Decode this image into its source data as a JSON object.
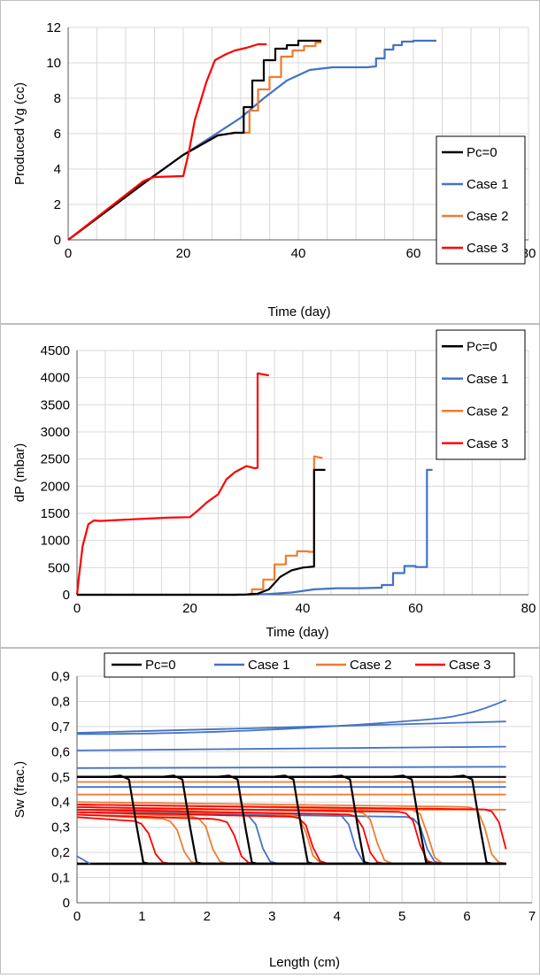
{
  "chart_data": [
    {
      "type": "line",
      "xlabel": "Time (day)",
      "ylabel": "Produced Vg (cc)",
      "xlim": [
        0,
        80
      ],
      "ylim": [
        0,
        12
      ],
      "xticks": [
        "0",
        "20",
        "40",
        "60",
        "80"
      ],
      "yticks": [
        "0",
        "2",
        "4",
        "6",
        "8",
        "10",
        "12"
      ],
      "grid": true,
      "legend_position": "right",
      "series": [
        {
          "name": "Pc=0",
          "color": "#000000",
          "x": [
            0,
            14,
            20,
            26,
            29,
            30.5,
            30.5,
            32,
            32,
            34,
            34,
            36,
            36,
            38,
            38,
            40,
            40,
            44
          ],
          "y": [
            0,
            3.4,
            4.8,
            5.9,
            6.05,
            6.05,
            7.5,
            7.5,
            9.0,
            9.0,
            10.15,
            10.15,
            10.8,
            10.8,
            11.0,
            11.0,
            11.25,
            11.25
          ]
        },
        {
          "name": "Case 1",
          "color": "#4472c4",
          "x": [
            0,
            14,
            20,
            26,
            30,
            34,
            38,
            42,
            46,
            50,
            52,
            53.5,
            53.5,
            55,
            55,
            56.5,
            56.5,
            58,
            58,
            60,
            60,
            64
          ],
          "y": [
            0,
            3.4,
            4.8,
            6.05,
            6.9,
            8.0,
            9.0,
            9.6,
            9.75,
            9.75,
            9.75,
            9.8,
            10.25,
            10.25,
            10.75,
            10.75,
            11.0,
            11.0,
            11.2,
            11.2,
            11.25,
            11.25
          ]
        },
        {
          "name": "Case 2",
          "color": "#ed7d31",
          "x": [
            0,
            14,
            20,
            26,
            29,
            31.5,
            31.5,
            33,
            33,
            35,
            35,
            37,
            37,
            39,
            39,
            41,
            41,
            43,
            43,
            44
          ],
          "y": [
            0,
            3.4,
            4.8,
            5.9,
            6.05,
            6.05,
            7.3,
            7.3,
            8.5,
            8.5,
            9.2,
            9.2,
            10.35,
            10.35,
            10.7,
            10.7,
            10.95,
            10.95,
            11.15,
            11.15
          ]
        },
        {
          "name": "Case 3",
          "color": "#ff0000",
          "x": [
            0,
            13,
            14,
            15,
            19.8,
            20,
            21,
            21,
            22,
            22,
            24,
            24,
            25.5,
            25.5,
            27.5,
            27.5,
            29,
            29,
            31,
            31,
            33,
            33,
            34.5
          ],
          "y": [
            0,
            3.3,
            3.45,
            3.55,
            3.6,
            3.6,
            5.0,
            5.0,
            6.75,
            6.75,
            8.9,
            8.9,
            10.15,
            10.15,
            10.5,
            10.5,
            10.7,
            10.7,
            10.85,
            10.85,
            11.05,
            11.05,
            11.05
          ]
        }
      ]
    },
    {
      "type": "line",
      "xlabel": "Time (day)",
      "ylabel": "dP (mbar)",
      "xlim": [
        0,
        80
      ],
      "ylim": [
        0,
        4500
      ],
      "xticks": [
        "0",
        "20",
        "40",
        "60",
        "80"
      ],
      "yticks": [
        "0",
        "500",
        "1000",
        "1500",
        "2000",
        "2500",
        "3000",
        "3500",
        "4000",
        "4500"
      ],
      "grid": true,
      "legend_position": "top-right",
      "series": [
        {
          "name": "Pc=0",
          "color": "#000000",
          "x": [
            0,
            28,
            30,
            31,
            32,
            32,
            34,
            34,
            36,
            36,
            38,
            38,
            40,
            40,
            42,
            42,
            44
          ],
          "y": [
            0,
            0,
            5,
            15,
            20,
            20,
            100,
            100,
            330,
            330,
            450,
            450,
            500,
            500,
            520,
            2300,
            2300
          ]
        },
        {
          "name": "Case 1",
          "color": "#4472c4",
          "x": [
            0,
            30,
            34,
            38,
            42,
            46,
            50,
            54,
            54,
            56,
            56,
            58,
            58,
            60,
            60,
            62,
            62,
            63
          ],
          "y": [
            0,
            0,
            15,
            40,
            100,
            120,
            120,
            130,
            180,
            180,
            400,
            400,
            530,
            530,
            510,
            510,
            2300,
            2300
          ]
        },
        {
          "name": "Case 2",
          "color": "#ed7d31",
          "x": [
            0,
            28,
            30,
            31,
            31,
            33,
            33,
            35,
            35,
            37,
            37,
            39,
            39,
            41,
            41,
            42,
            42,
            43.5
          ],
          "y": [
            0,
            0,
            5,
            20,
            100,
            100,
            280,
            280,
            560,
            560,
            720,
            720,
            800,
            800,
            790,
            790,
            2550,
            2520
          ]
        },
        {
          "name": "Case 3",
          "color": "#ff0000",
          "x": [
            0,
            0.3,
            1,
            2,
            3,
            4,
            10,
            16,
            20,
            20,
            21.5,
            21.5,
            23,
            23,
            25,
            25,
            26.5,
            26.5,
            28,
            28,
            30,
            30,
            31.5,
            31.5,
            32,
            32,
            34
          ],
          "y": [
            0,
            300,
            900,
            1300,
            1370,
            1360,
            1390,
            1420,
            1430,
            1430,
            1560,
            1560,
            1700,
            1700,
            1850,
            1850,
            2130,
            2130,
            2260,
            2260,
            2370,
            2370,
            2330,
            2330,
            2340,
            4080,
            4040
          ]
        }
      ]
    },
    {
      "type": "line",
      "xlabel": "Length (cm)",
      "ylabel": "Sw (frac.)",
      "xlim": [
        0,
        7
      ],
      "ylim": [
        0,
        0.9
      ],
      "xticks": [
        "0",
        "1",
        "2",
        "3",
        "4",
        "5",
        "6",
        "7"
      ],
      "yticks": [
        "0",
        "0,1",
        "0,2",
        "0,3",
        "0,4",
        "0,5",
        "0,6",
        "0,7",
        "0,8",
        "0,9"
      ],
      "grid": true,
      "legend_position": "top",
      "series": [
        {
          "name": "Pc=0",
          "color": "#000000",
          "x": [
            0,
            6.6
          ],
          "y": [
            0.5,
            0.5
          ]
        },
        {
          "name": "Case 1",
          "color": "#4472c4",
          "x": [
            0,
            6.6
          ],
          "y": [
            0.675,
            0.795
          ]
        },
        {
          "name": "Case 2",
          "color": "#ed7d31",
          "x": [
            0,
            6.6
          ],
          "y": [
            0.39,
            0.37
          ]
        },
        {
          "name": "Case 3",
          "color": "#ff0000",
          "x": [
            0,
            6.6
          ],
          "y": [
            0.38,
            0.165
          ]
        }
      ],
      "profiles": {
        "black_fronts": [
          0.92,
          1.74,
          2.59,
          3.45,
          4.32,
          5.27,
          6.2
        ],
        "blue_flat": [
          [
            0.675,
            0.72
          ],
          [
            0.605,
            0.62
          ],
          [
            0.535,
            0.54
          ],
          [
            0.46,
            0.46
          ]
        ],
        "blue_fronts": [
          [
            0.37,
            2.82
          ],
          [
            0.37,
            4.25
          ],
          [
            0.36,
            5.35
          ]
        ],
        "orange_flat": [
          0.48,
          0.43,
          0.37
        ],
        "orange_fronts": [
          [
            0.35,
            1.6
          ],
          [
            0.36,
            2.05
          ],
          [
            0.37,
            3.55
          ],
          [
            0.38,
            4.6
          ],
          [
            0.39,
            5.4
          ],
          [
            0.4,
            6.3
          ]
        ],
        "red_fronts": [
          [
            0.34,
            1.15
          ],
          [
            0.35,
            2.45
          ],
          [
            0.36,
            3.6
          ],
          [
            0.37,
            4.45
          ],
          [
            0.38,
            5.25
          ],
          [
            0.39,
            6.55
          ]
        ]
      }
    }
  ]
}
